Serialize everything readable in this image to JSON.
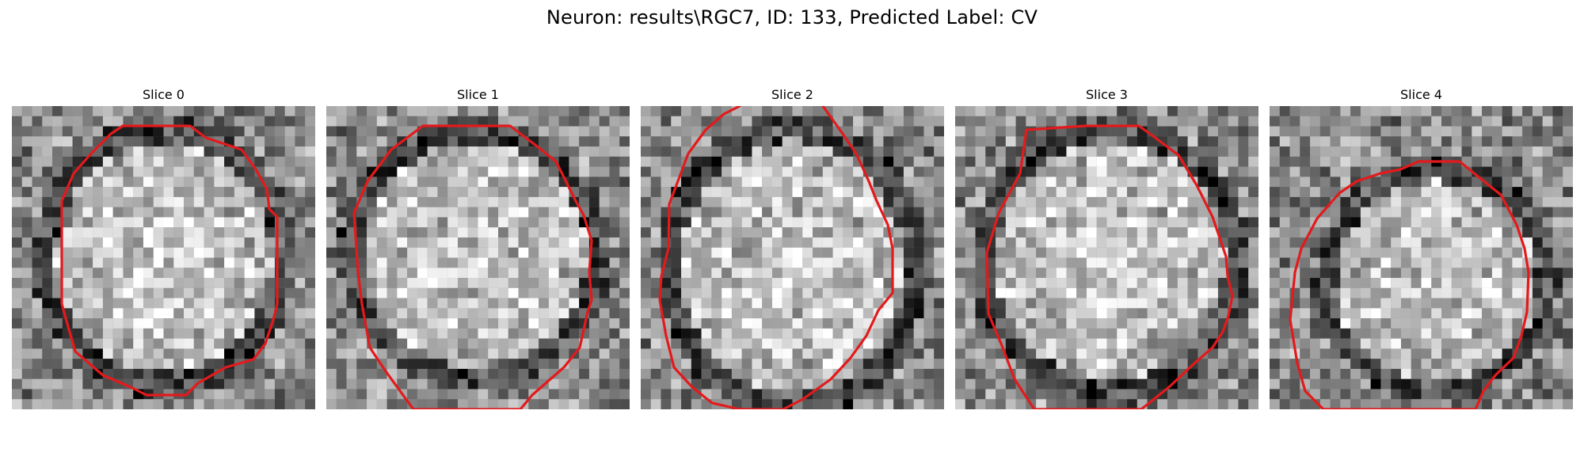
{
  "figure": {
    "title": "Neuron: results\\RGC7, ID: 133, Predicted Label: CV"
  },
  "panels": [
    {
      "label": "Slice 0",
      "contour_color": "#e31a1c"
    },
    {
      "label": "Slice 1",
      "contour_color": "#e31a1c"
    },
    {
      "label": "Slice 2",
      "contour_color": "#e31a1c"
    },
    {
      "label": "Slice 3",
      "contour_color": "#e31a1c"
    },
    {
      "label": "Slice 4",
      "contour_color": "#e31a1c"
    }
  ]
}
